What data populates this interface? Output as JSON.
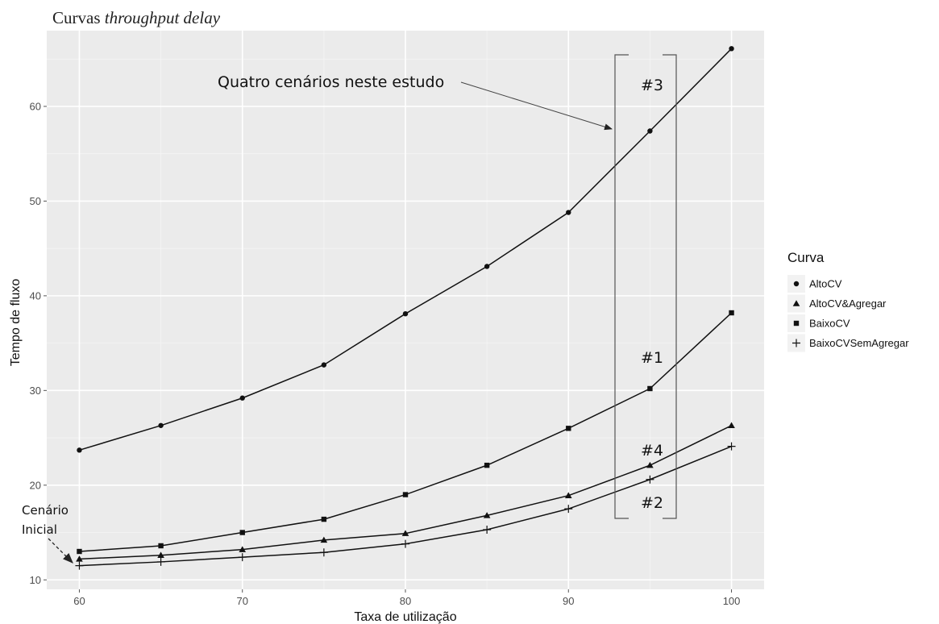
{
  "chart_data": {
    "type": "line",
    "title_prefix": "Curvas ",
    "title_italic": "throughput delay",
    "xlabel": "Taxa de utilização",
    "ylabel": "Tempo de fluxo",
    "xlim": [
      58,
      102
    ],
    "ylim": [
      9,
      68
    ],
    "xticks": [
      60,
      70,
      80,
      90,
      100
    ],
    "yticks": [
      10,
      20,
      30,
      40,
      50,
      60
    ],
    "x": [
      60,
      65,
      70,
      75,
      80,
      85,
      90,
      95,
      100
    ],
    "grid": true,
    "legend_position": "right",
    "legend_title": "Curva",
    "series": [
      {
        "name": "AltoCV",
        "marker": "circle",
        "values": [
          23.7,
          26.3,
          29.2,
          32.7,
          38.1,
          43.1,
          48.8,
          57.4,
          66.1
        ]
      },
      {
        "name": "AltoCV&Agregar",
        "marker": "triangle",
        "values": [
          12.2,
          12.6,
          13.2,
          14.2,
          14.9,
          16.8,
          18.9,
          22.1,
          26.3
        ]
      },
      {
        "name": "BaixoCV",
        "marker": "square",
        "values": [
          13.0,
          13.6,
          15.0,
          16.4,
          19.0,
          22.1,
          26.0,
          30.2,
          38.2
        ]
      },
      {
        "name": "BaixoCVSemAgregar",
        "marker": "plus",
        "values": [
          11.5,
          11.9,
          12.4,
          12.9,
          13.8,
          15.3,
          17.5,
          20.6,
          24.1
        ]
      }
    ],
    "annotations": {
      "callout": "Quatro cenários neste estudo",
      "scenario_1": "#1",
      "scenario_2": "#2",
      "scenario_3": "#3",
      "scenario_4": "#4",
      "initial_line1": "Cenário",
      "initial_line2": "Inicial"
    }
  }
}
